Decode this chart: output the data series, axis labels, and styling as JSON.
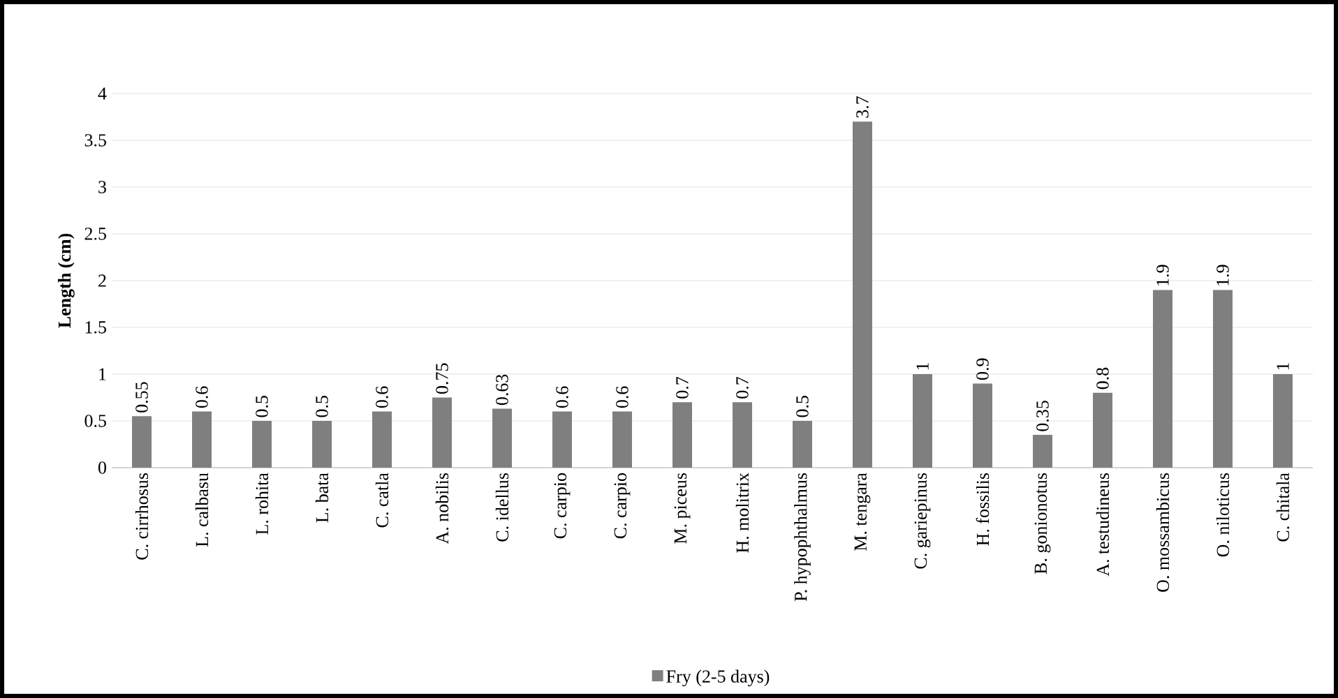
{
  "chart_data": {
    "type": "bar",
    "ylabel": "Length (cm)",
    "categories": [
      "C. cirrhosus",
      "L. calbasu",
      "L. rohita",
      "L. bata",
      "C. catla",
      "A. nobilis",
      "C. idellus",
      "C. carpio",
      "C. carpio",
      "M. piceus",
      "H. molitrix",
      "P. hypophthalmus",
      "M. tengara",
      "C. gariepinus",
      "H. fossilis",
      "B. gonionotus",
      "A. testudineus",
      "O. mossambicus",
      "O. niloticus",
      "C. chitala"
    ],
    "series": [
      {
        "name": "Fry (2-5 days)",
        "color": "#7f7f7f",
        "values": [
          0.55,
          0.6,
          0.5,
          0.5,
          0.6,
          0.75,
          0.63,
          0.6,
          0.6,
          0.7,
          0.7,
          0.5,
          3.7,
          1,
          0.9,
          0.35,
          0.8,
          1.9,
          1.9,
          1
        ]
      }
    ],
    "ylim": [
      0,
      4
    ],
    "yticks": [
      0,
      0.5,
      1,
      1.5,
      2,
      2.5,
      3,
      3.5,
      4
    ],
    "grid": "y",
    "legend": "bottom",
    "data_labels": true
  }
}
